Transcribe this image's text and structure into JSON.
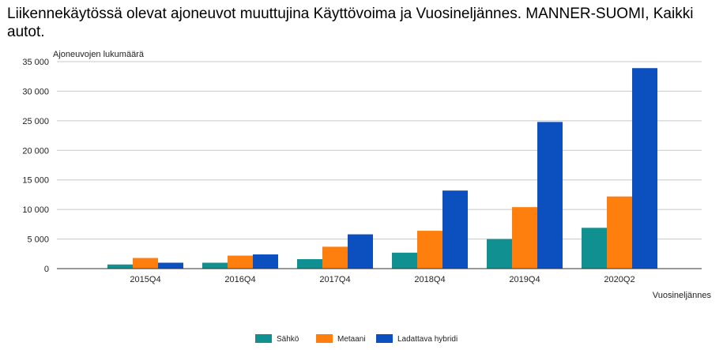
{
  "chart_data": {
    "type": "bar",
    "title": "Liikennekäytössä olevat ajoneuvot muuttujina Käyttövoima ja Vuosineljännes. MANNER-SUOMI, Kaikki autot.",
    "ylabel": "Ajoneuvojen lukumäärä",
    "xlabel": "Vuosineljännes",
    "ylim": [
      0,
      35000
    ],
    "yticks": [
      0,
      5000,
      10000,
      15000,
      20000,
      25000,
      30000,
      35000
    ],
    "ytick_labels": [
      "0",
      "5 000",
      "10 000",
      "15 000",
      "20 000",
      "25 000",
      "30 000",
      "35 000"
    ],
    "categories": [
      "2015Q4",
      "2016Q4",
      "2017Q4",
      "2018Q4",
      "2019Q4",
      "2020Q2"
    ],
    "series": [
      {
        "name": "Sähkö",
        "color": "#109090",
        "values": [
          700,
          1000,
          1600,
          2700,
          5000,
          6900
        ]
      },
      {
        "name": "Metaani",
        "color": "#ff7f0e",
        "values": [
          1800,
          2200,
          3700,
          6400,
          10400,
          12200
        ]
      },
      {
        "name": "Ladattava hybridi",
        "color": "#0c4fbf",
        "values": [
          1000,
          2400,
          5800,
          13200,
          24800,
          33900
        ]
      }
    ],
    "grid": true,
    "legend": "bottom"
  }
}
